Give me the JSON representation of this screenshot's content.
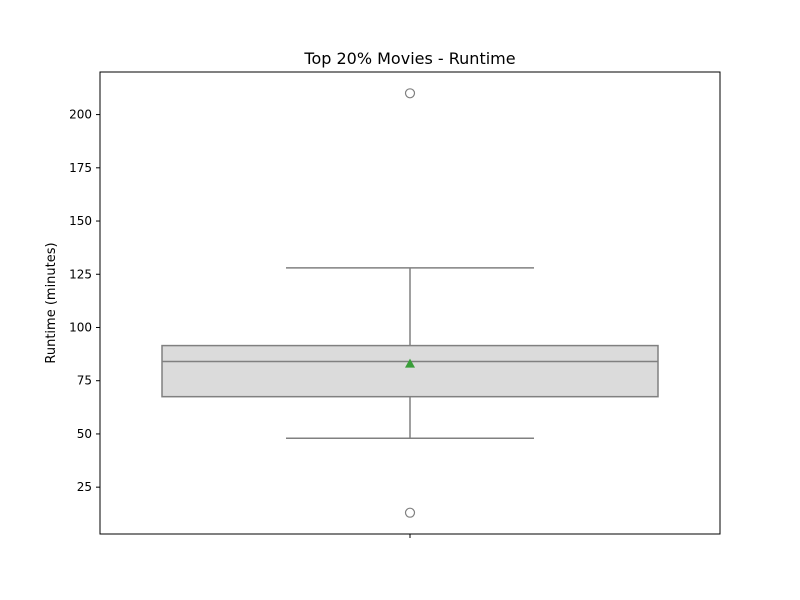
{
  "chart_data": {
    "type": "box",
    "title": "Top 20% Movies - Runtime",
    "xlabel": "",
    "ylabel": "Runtime (minutes)",
    "ylim": [
      3,
      220
    ],
    "yticks": [
      25,
      50,
      75,
      100,
      125,
      150,
      175,
      200
    ],
    "grid": false,
    "box": {
      "whisker_low": 48,
      "q1": 67.5,
      "median": 84,
      "q3": 91.5,
      "whisker_high": 128,
      "mean": 83,
      "outliers": [
        210,
        13
      ]
    },
    "colors": {
      "box_fill": "#dbdbdb",
      "box_edge": "#808080",
      "mean_marker": "#3a9e3a",
      "outlier_edge": "#808080"
    }
  }
}
